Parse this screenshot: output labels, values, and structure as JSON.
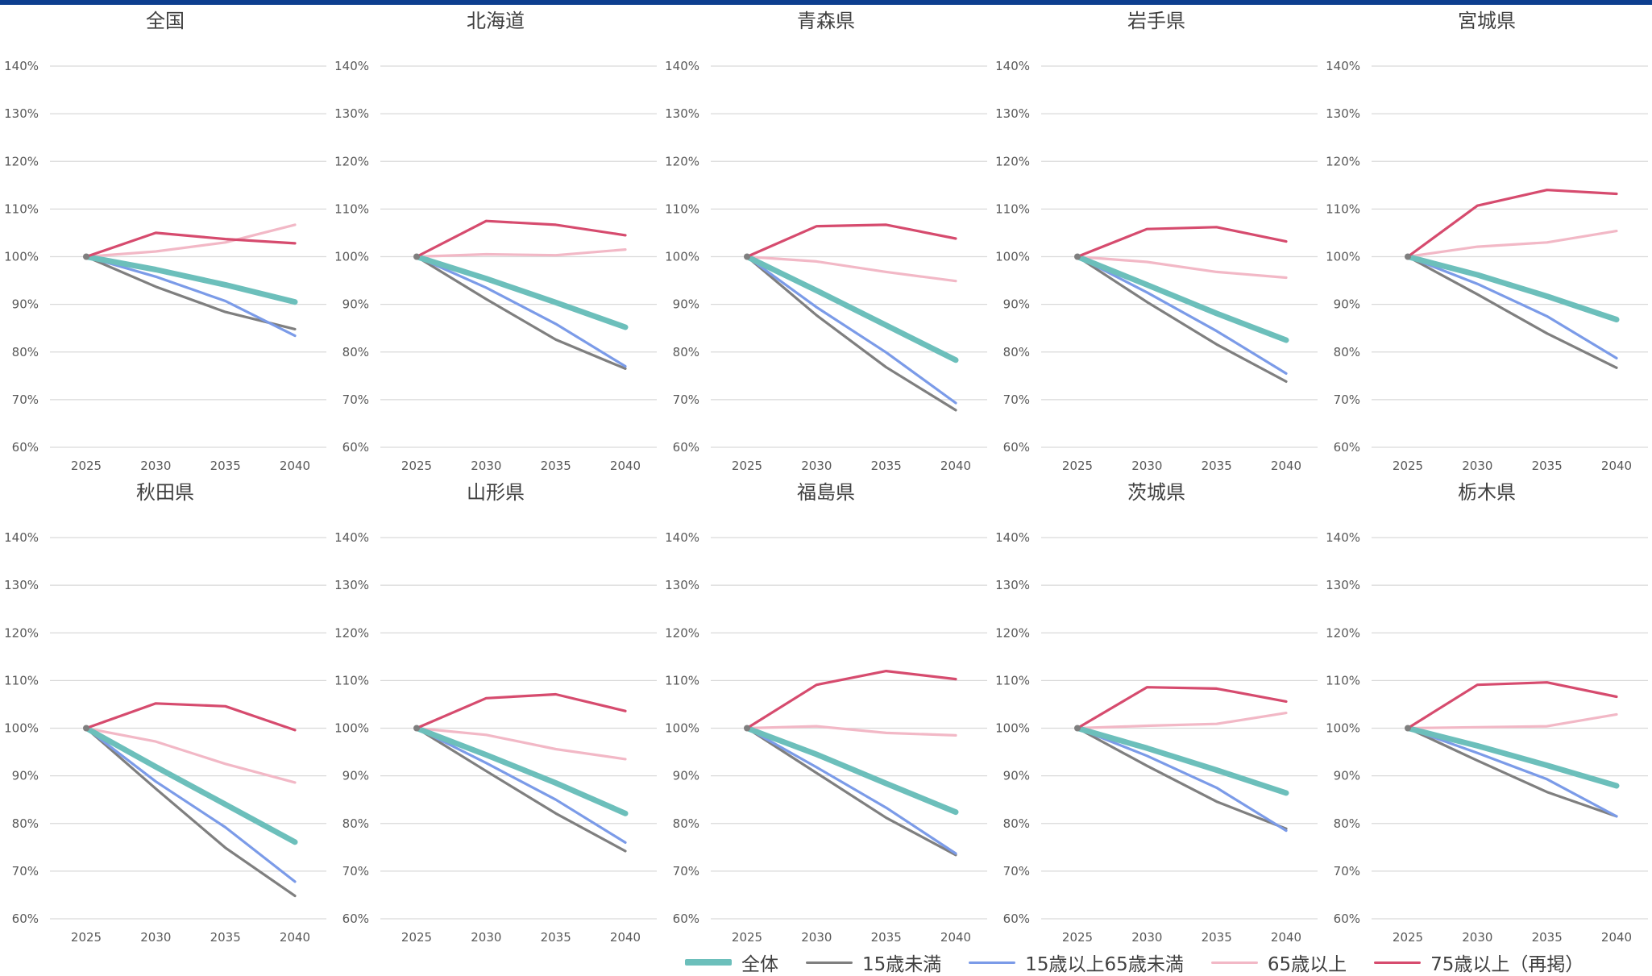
{
  "chart_data": {
    "type": "line",
    "x": [
      "2025",
      "2030",
      "2035",
      "2040"
    ],
    "ylim": [
      60,
      140
    ],
    "yticks": [
      "60%",
      "70%",
      "80%",
      "90%",
      "100%",
      "110%",
      "120%",
      "130%",
      "140%"
    ],
    "grid": true,
    "legend_position": "bottom",
    "legend": [
      {
        "name": "全体",
        "color": "#6cbfbb",
        "width": 7
      },
      {
        "name": "15歳未満",
        "color": "#7f7f7f",
        "width": 3.2
      },
      {
        "name": "15歳以上65歳未満",
        "color": "#7b9be8",
        "width": 3.2
      },
      {
        "name": "65歳以上",
        "color": "#f2b8c6",
        "width": 3.2
      },
      {
        "name": "75歳以上（再掲）",
        "color": "#d64b6e",
        "width": 3.2
      }
    ],
    "panels": [
      {
        "title": "全国",
        "series": [
          [
            100,
            97.3,
            94.1,
            90.5
          ],
          [
            100,
            93.7,
            88.4,
            84.8
          ],
          [
            100,
            95.8,
            90.7,
            83.4
          ],
          [
            100,
            101.1,
            103.0,
            106.7
          ],
          [
            100,
            105.0,
            103.7,
            102.8
          ]
        ]
      },
      {
        "title": "北海道",
        "series": [
          [
            100,
            95.4,
            90.4,
            85.2
          ],
          [
            100,
            91.1,
            82.6,
            76.5
          ],
          [
            100,
            93.5,
            85.9,
            77.0
          ],
          [
            100,
            100.5,
            100.3,
            101.5
          ],
          [
            100,
            107.5,
            106.7,
            104.5
          ]
        ]
      },
      {
        "title": "青森県",
        "series": [
          [
            100,
            92.9,
            85.6,
            78.3
          ],
          [
            100,
            87.7,
            76.8,
            67.8
          ],
          [
            100,
            89.4,
            79.9,
            69.3
          ],
          [
            100,
            99.0,
            96.8,
            94.9
          ],
          [
            100,
            106.4,
            106.7,
            103.8
          ]
        ]
      },
      {
        "title": "岩手県",
        "series": [
          [
            100,
            94.1,
            88.1,
            82.5
          ],
          [
            100,
            90.5,
            81.6,
            73.8
          ],
          [
            100,
            92.5,
            84.4,
            75.5
          ],
          [
            100,
            98.9,
            96.8,
            95.6
          ],
          [
            100,
            105.8,
            106.2,
            103.2
          ]
        ]
      },
      {
        "title": "宮城県",
        "series": [
          [
            100,
            96.2,
            91.7,
            86.8
          ],
          [
            100,
            92.1,
            83.9,
            76.7
          ],
          [
            100,
            94.3,
            87.5,
            78.7
          ],
          [
            100,
            102.1,
            103.0,
            105.4
          ],
          [
            100,
            110.7,
            114.0,
            113.2
          ]
        ]
      },
      {
        "title": "秋田県",
        "series": [
          [
            100,
            91.9,
            84.0,
            76.1
          ],
          [
            100,
            87.3,
            74.9,
            64.8
          ],
          [
            100,
            88.8,
            79.2,
            67.8
          ],
          [
            100,
            97.2,
            92.5,
            88.6
          ],
          [
            100,
            105.2,
            104.6,
            99.6
          ]
        ]
      },
      {
        "title": "山形県",
        "series": [
          [
            100,
            94.4,
            88.5,
            82.1
          ],
          [
            100,
            91.0,
            82.1,
            74.2
          ],
          [
            100,
            92.7,
            85.0,
            76.0
          ],
          [
            100,
            98.6,
            95.6,
            93.5
          ],
          [
            100,
            106.3,
            107.1,
            103.6
          ]
        ]
      },
      {
        "title": "福島県",
        "series": [
          [
            100,
            94.5,
            88.4,
            82.4
          ],
          [
            100,
            90.6,
            81.2,
            73.4
          ],
          [
            100,
            91.8,
            83.3,
            73.7
          ],
          [
            100,
            100.4,
            99.0,
            98.5
          ],
          [
            100,
            109.1,
            112.0,
            110.3
          ]
        ]
      },
      {
        "title": "茨城県",
        "series": [
          [
            100,
            95.8,
            91.2,
            86.4
          ],
          [
            100,
            92.1,
            84.6,
            78.9
          ],
          [
            100,
            94.2,
            87.5,
            78.5
          ],
          [
            100,
            100.5,
            100.9,
            103.2
          ],
          [
            100,
            108.6,
            108.3,
            105.6
          ]
        ]
      },
      {
        "title": "栃木県",
        "series": [
          [
            100,
            96.3,
            92.2,
            87.9
          ],
          [
            100,
            93.2,
            86.6,
            81.5
          ],
          [
            100,
            94.8,
            89.3,
            81.5
          ],
          [
            100,
            100.2,
            100.4,
            102.9
          ],
          [
            100,
            109.1,
            109.6,
            106.6
          ]
        ]
      }
    ]
  }
}
